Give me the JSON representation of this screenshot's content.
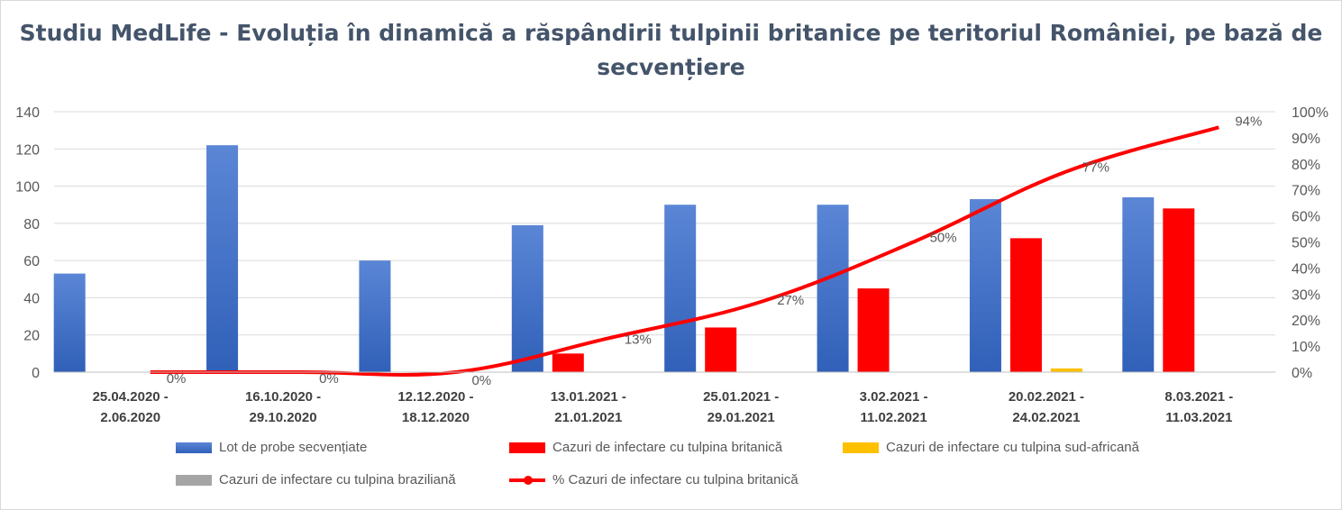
{
  "chart_data": {
    "type": "bar",
    "title": "Studiu MedLife - Evoluția în dinamică a răspândirii tulpinii britanice pe teritoriul României, pe bază de secvențiere",
    "categories": [
      [
        "25.04.2020 -",
        "2.06.2020"
      ],
      [
        "16.10.2020 -",
        "29.10.2020"
      ],
      [
        "12.12.2020 -",
        "18.12.2020"
      ],
      [
        "13.01.2021 -",
        "21.01.2021"
      ],
      [
        "25.01.2021 -",
        "29.01.2021"
      ],
      [
        "3.02.2021 -",
        "11.02.2021"
      ],
      [
        "20.02.2021 -",
        "24.02.2021"
      ],
      [
        "8.03.2021 -",
        "11.03.2021"
      ]
    ],
    "series": [
      {
        "name": "Lot de probe secvențiate",
        "axis": "left",
        "kind": "bar",
        "color": "#4472c4",
        "values": [
          53,
          122,
          60,
          79,
          90,
          90,
          93,
          94
        ]
      },
      {
        "name": "Cazuri de infectare cu tulpina britanică",
        "axis": "left",
        "kind": "bar",
        "color": "#ff0000",
        "values": [
          0,
          0,
          0,
          10,
          24,
          45,
          72,
          88
        ]
      },
      {
        "name": "Cazuri de infectare cu tulpina sud-africană",
        "axis": "left",
        "kind": "bar",
        "color": "#ffc000",
        "values": [
          0,
          0,
          0,
          0,
          0,
          0,
          2,
          0
        ]
      },
      {
        "name": "Cazuri de infectare cu tulpina braziliană",
        "axis": "left",
        "kind": "bar",
        "color": "#a5a5a5",
        "values": [
          0,
          0,
          0,
          0,
          0,
          0,
          0,
          0
        ]
      },
      {
        "name": "% Cazuri de infectare cu tulpina britanică",
        "axis": "right",
        "kind": "line",
        "color": "#ff0000",
        "values": [
          0,
          0,
          0,
          13,
          27,
          50,
          77,
          94
        ],
        "labels": [
          "0%",
          "0%",
          "0%",
          "13%",
          "27%",
          "50%",
          "77%",
          "94%"
        ]
      }
    ],
    "y_left": {
      "min": 0,
      "max": 140,
      "ticks": [
        0,
        20,
        40,
        60,
        80,
        100,
        120,
        140
      ]
    },
    "y_right": {
      "min": 0,
      "max": 100,
      "ticks": [
        "0%",
        "10%",
        "20%",
        "30%",
        "40%",
        "50%",
        "60%",
        "70%",
        "80%",
        "90%",
        "100%"
      ]
    },
    "grid": true,
    "legend_position": "bottom"
  }
}
